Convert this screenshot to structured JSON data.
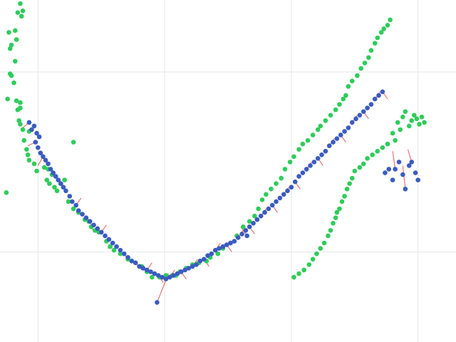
{
  "colors": {
    "background": "#ffffff",
    "grid": "#e6e6e6",
    "green_series": "#2ecc5a",
    "blue_series": "#3a5bc0",
    "link": "#e85a5a"
  },
  "chart_data": {
    "type": "scatter",
    "title": "",
    "xlabel": "",
    "ylabel": "",
    "grid": true,
    "legend": "none",
    "xlim": [
      -1.3,
      2.3
    ],
    "ylim": [
      -0.5,
      1.4
    ],
    "xgrid": [
      -1,
      0,
      1,
      2
    ],
    "ygrid": [
      0,
      1
    ],
    "series": [
      {
        "key": "green",
        "color": "#2ecc5a",
        "points": [
          [
            -1.14,
            1.38
          ],
          [
            -1.12,
            1.34
          ],
          [
            -1.13,
            1.31
          ],
          [
            -1.16,
            1.33
          ],
          [
            -1.18,
            1.23
          ],
          [
            -1.23,
            1.22
          ],
          [
            -1.21,
            1.15
          ],
          [
            -1.22,
            1.13
          ],
          [
            -1.17,
            1.18
          ],
          [
            -1.18,
            1.06
          ],
          [
            -1.22,
            0.99
          ],
          [
            -1.19,
            0.94
          ],
          [
            -1.21,
            0.98
          ],
          [
            -1.24,
            0.85
          ],
          [
            -1.17,
            0.84
          ],
          [
            -1.14,
            0.83
          ],
          [
            -1.16,
            0.79
          ],
          [
            -1.14,
            0.8
          ],
          [
            -1.15,
            0.73
          ],
          [
            -1.14,
            0.71
          ],
          [
            -1.12,
            0.68
          ],
          [
            -1.07,
            0.67
          ],
          [
            -1.11,
            0.62
          ],
          [
            -1.09,
            0.57
          ],
          [
            -1.08,
            0.54
          ],
          [
            -1.07,
            0.51
          ],
          [
            -1.03,
            0.49
          ],
          [
            -1.01,
            0.45
          ],
          [
            -0.95,
            0.47
          ],
          [
            -0.92,
            0.46
          ],
          [
            -0.89,
            0.43
          ],
          [
            -0.93,
            0.4
          ],
          [
            -0.91,
            0.38
          ],
          [
            -0.87,
            0.36
          ],
          [
            -0.85,
            0.34
          ],
          [
            -0.82,
            0.38
          ],
          [
            -0.79,
            0.4
          ],
          [
            -0.76,
            0.28
          ],
          [
            -0.72,
            0.24
          ],
          [
            -0.68,
            0.22
          ],
          [
            -0.63,
            0.18
          ],
          [
            -0.6,
            0.17
          ],
          [
            -0.58,
            0.14
          ],
          [
            -0.55,
            0.12
          ],
          [
            -0.52,
            0.11
          ],
          [
            -0.46,
            0.06
          ],
          [
            -0.43,
            0.03
          ],
          [
            -0.4,
            0.01
          ],
          [
            -0.35,
            -0.01
          ],
          [
            -0.29,
            -0.04
          ],
          [
            -0.26,
            -0.05
          ],
          [
            -0.18,
            -0.08
          ],
          [
            -0.14,
            -0.11
          ],
          [
            -0.1,
            -0.14
          ],
          [
            -0.04,
            -0.14
          ],
          [
            0.01,
            -0.13
          ],
          [
            0.06,
            -0.13
          ],
          [
            0.09,
            -0.13
          ],
          [
            0.12,
            -0.11
          ],
          [
            0.17,
            -0.09
          ],
          [
            0.22,
            -0.07
          ],
          [
            0.27,
            -0.06
          ],
          [
            0.33,
            -0.05
          ],
          [
            0.36,
            -0.03
          ],
          [
            0.42,
            -0.01
          ],
          [
            0.46,
            0.02
          ],
          [
            0.52,
            0.05
          ],
          [
            0.57,
            0.09
          ],
          [
            0.62,
            0.14
          ],
          [
            0.67,
            0.17
          ],
          [
            0.71,
            0.2
          ],
          [
            0.74,
            0.24
          ],
          [
            0.77,
            0.29
          ],
          [
            0.8,
            0.32
          ],
          [
            0.84,
            0.35
          ],
          [
            0.88,
            0.38
          ],
          [
            0.92,
            0.41
          ],
          [
            0.95,
            0.46
          ],
          [
            0.99,
            0.5
          ],
          [
            1.02,
            0.53
          ],
          [
            1.06,
            0.57
          ],
          [
            1.09,
            0.6
          ],
          [
            1.13,
            0.62
          ],
          [
            1.17,
            0.65
          ],
          [
            1.21,
            0.68
          ],
          [
            1.23,
            0.7
          ],
          [
            1.27,
            0.73
          ],
          [
            1.31,
            0.76
          ],
          [
            1.35,
            0.79
          ],
          [
            1.38,
            0.82
          ],
          [
            1.41,
            0.85
          ],
          [
            1.43,
            0.87
          ],
          [
            1.45,
            0.92
          ],
          [
            1.48,
            0.95
          ],
          [
            1.52,
            0.98
          ],
          [
            1.55,
            1.02
          ],
          [
            1.58,
            1.05
          ],
          [
            1.61,
            1.08
          ],
          [
            1.63,
            1.12
          ],
          [
            1.66,
            1.16
          ],
          [
            1.68,
            1.19
          ],
          [
            1.71,
            1.22
          ],
          [
            1.73,
            1.24
          ],
          [
            1.76,
            1.26
          ],
          [
            1.78,
            1.29
          ],
          [
            1.84,
            0.72
          ],
          [
            1.88,
            0.75
          ],
          [
            1.9,
            0.78
          ],
          [
            1.93,
            0.7
          ],
          [
            1.95,
            0.73
          ],
          [
            1.97,
            0.76
          ],
          [
            1.99,
            0.74
          ],
          [
            2.01,
            0.71
          ],
          [
            2.03,
            0.75
          ],
          [
            2.05,
            0.72
          ],
          [
            1.86,
            0.68
          ],
          [
            1.8,
            0.66
          ],
          [
            1.82,
            0.62
          ],
          [
            1.76,
            0.6
          ],
          [
            1.72,
            0.58
          ],
          [
            1.68,
            0.56
          ],
          [
            1.64,
            0.54
          ],
          [
            1.6,
            0.52
          ],
          [
            1.57,
            0.49
          ],
          [
            1.54,
            0.47
          ],
          [
            1.5,
            0.45
          ],
          [
            1.48,
            0.41
          ],
          [
            1.46,
            0.38
          ],
          [
            1.44,
            0.35
          ],
          [
            1.42,
            0.31
          ],
          [
            1.4,
            0.28
          ],
          [
            1.38,
            0.24
          ],
          [
            1.36,
            0.22
          ],
          [
            1.35,
            0.19
          ],
          [
            1.33,
            0.16
          ],
          [
            1.31,
            0.12
          ],
          [
            1.29,
            0.09
          ],
          [
            1.26,
            0.05
          ],
          [
            1.23,
            0.02
          ],
          [
            1.2,
            -0.01
          ],
          [
            1.17,
            -0.04
          ],
          [
            1.14,
            -0.07
          ],
          [
            1.1,
            -0.1
          ],
          [
            1.06,
            -0.12
          ],
          [
            1.02,
            -0.14
          ],
          [
            -1.25,
            0.33
          ],
          [
            -0.72,
            0.61
          ]
        ]
      },
      {
        "key": "blue",
        "color": "#3a5bc0",
        "points": [
          [
            -1.07,
            0.72
          ],
          [
            -1.05,
            0.68
          ],
          [
            -1.03,
            0.7
          ],
          [
            -1.01,
            0.66
          ],
          [
            -0.99,
            0.64
          ],
          [
            -1.02,
            0.61
          ],
          [
            -1.0,
            0.58
          ],
          [
            -0.98,
            0.55
          ],
          [
            -0.96,
            0.53
          ],
          [
            -0.94,
            0.51
          ],
          [
            -0.92,
            0.49
          ],
          [
            -0.9,
            0.46
          ],
          [
            -0.88,
            0.44
          ],
          [
            -0.86,
            0.42
          ],
          [
            -0.84,
            0.4
          ],
          [
            -0.82,
            0.38
          ],
          [
            -0.8,
            0.36
          ],
          [
            -0.78,
            0.34
          ],
          [
            -0.75,
            0.31
          ],
          [
            -0.73,
            0.28
          ],
          [
            -0.7,
            0.26
          ],
          [
            -0.68,
            0.23
          ],
          [
            -0.65,
            0.21
          ],
          [
            -0.62,
            0.19
          ],
          [
            -0.59,
            0.17
          ],
          [
            -0.56,
            0.15
          ],
          [
            -0.53,
            0.13
          ],
          [
            -0.5,
            0.11
          ],
          [
            -0.47,
            0.09
          ],
          [
            -0.44,
            0.07
          ],
          [
            -0.41,
            0.05
          ],
          [
            -0.38,
            0.03
          ],
          [
            -0.35,
            0.01
          ],
          [
            -0.32,
            -0.01
          ],
          [
            -0.29,
            -0.03
          ],
          [
            -0.26,
            -0.05
          ],
          [
            -0.23,
            -0.06
          ],
          [
            -0.2,
            -0.08
          ],
          [
            -0.17,
            -0.09
          ],
          [
            -0.14,
            -0.1
          ],
          [
            -0.11,
            -0.11
          ],
          [
            -0.08,
            -0.12
          ],
          [
            -0.05,
            -0.13
          ],
          [
            -0.02,
            -0.14
          ],
          [
            0.01,
            -0.15
          ],
          [
            0.04,
            -0.14
          ],
          [
            0.07,
            -0.13
          ],
          [
            0.1,
            -0.12
          ],
          [
            0.13,
            -0.11
          ],
          [
            0.16,
            -0.1
          ],
          [
            0.19,
            -0.09
          ],
          [
            0.22,
            -0.08
          ],
          [
            0.25,
            -0.07
          ],
          [
            0.28,
            -0.05
          ],
          [
            0.31,
            -0.04
          ],
          [
            0.34,
            -0.02
          ],
          [
            0.37,
            -0.01
          ],
          [
            0.4,
            0.01
          ],
          [
            0.43,
            0.02
          ],
          [
            0.46,
            0.03
          ],
          [
            0.49,
            0.04
          ],
          [
            0.52,
            0.05
          ],
          [
            0.55,
            0.06
          ],
          [
            0.58,
            0.08
          ],
          [
            0.61,
            0.1
          ],
          [
            0.64,
            0.12
          ],
          [
            0.67,
            0.14
          ],
          [
            0.7,
            0.16
          ],
          [
            0.73,
            0.18
          ],
          [
            0.76,
            0.2
          ],
          [
            0.79,
            0.22
          ],
          [
            0.82,
            0.24
          ],
          [
            0.85,
            0.26
          ],
          [
            0.88,
            0.28
          ],
          [
            0.91,
            0.3
          ],
          [
            0.94,
            0.32
          ],
          [
            0.97,
            0.34
          ],
          [
            1.0,
            0.36
          ],
          [
            1.03,
            0.39
          ],
          [
            1.06,
            0.42
          ],
          [
            1.09,
            0.44
          ],
          [
            1.12,
            0.46
          ],
          [
            1.15,
            0.48
          ],
          [
            1.18,
            0.5
          ],
          [
            1.21,
            0.52
          ],
          [
            1.24,
            0.54
          ],
          [
            1.27,
            0.56
          ],
          [
            1.3,
            0.59
          ],
          [
            1.33,
            0.61
          ],
          [
            1.36,
            0.63
          ],
          [
            1.39,
            0.65
          ],
          [
            1.42,
            0.67
          ],
          [
            1.45,
            0.69
          ],
          [
            1.48,
            0.72
          ],
          [
            1.51,
            0.74
          ],
          [
            1.54,
            0.76
          ],
          [
            1.57,
            0.78
          ],
          [
            1.6,
            0.8
          ],
          [
            1.63,
            0.82
          ],
          [
            1.66,
            0.85
          ],
          [
            1.69,
            0.87
          ],
          [
            1.72,
            0.89
          ],
          [
            -0.06,
            -0.28
          ],
          [
            0.65,
            0.09
          ],
          [
            1.82,
            0.46
          ],
          [
            1.9,
            0.35
          ],
          [
            1.95,
            0.5
          ],
          [
            1.98,
            0.44
          ],
          [
            2.0,
            0.4
          ],
          [
            1.93,
            0.48
          ],
          [
            1.88,
            0.43
          ],
          [
            1.85,
            0.5
          ],
          [
            1.8,
            0.4
          ],
          [
            1.77,
            0.46
          ],
          [
            1.74,
            0.44
          ]
        ]
      }
    ],
    "links": [
      [
        -1.07,
        0.72,
        -1.12,
        0.69
      ],
      [
        -1.02,
        0.61,
        -1.08,
        0.59
      ],
      [
        -0.96,
        0.53,
        -1.0,
        0.48
      ],
      [
        -0.84,
        0.4,
        -0.8,
        0.36
      ],
      [
        -0.7,
        0.26,
        -0.66,
        0.3
      ],
      [
        -0.59,
        0.17,
        -0.56,
        0.11
      ],
      [
        -0.5,
        0.11,
        -0.46,
        0.15
      ],
      [
        -0.41,
        0.05,
        -0.45,
        0.02
      ],
      [
        -0.32,
        -0.01,
        -0.28,
        -0.05
      ],
      [
        -0.23,
        -0.06,
        -0.18,
        -0.1
      ],
      [
        -0.14,
        -0.1,
        -0.1,
        -0.06
      ],
      [
        -0.05,
        -0.13,
        -0.01,
        -0.17
      ],
      [
        0.04,
        -0.14,
        0.08,
        -0.1
      ],
      [
        0.13,
        -0.11,
        0.17,
        -0.15
      ],
      [
        0.22,
        -0.08,
        0.26,
        -0.04
      ],
      [
        0.31,
        -0.04,
        0.35,
        -0.08
      ],
      [
        0.4,
        0.01,
        0.44,
        0.05
      ],
      [
        0.49,
        0.04,
        0.53,
        0.0
      ],
      [
        0.58,
        0.08,
        0.62,
        0.12
      ],
      [
        0.67,
        0.14,
        0.71,
        0.1
      ],
      [
        0.76,
        0.2,
        0.8,
        0.24
      ],
      [
        0.85,
        0.26,
        0.89,
        0.22
      ],
      [
        0.94,
        0.32,
        0.98,
        0.36
      ],
      [
        1.03,
        0.39,
        1.07,
        0.35
      ],
      [
        1.12,
        0.46,
        1.16,
        0.5
      ],
      [
        1.21,
        0.52,
        1.25,
        0.48
      ],
      [
        1.3,
        0.59,
        1.34,
        0.63
      ],
      [
        1.39,
        0.65,
        1.43,
        0.61
      ],
      [
        1.48,
        0.72,
        1.52,
        0.76
      ],
      [
        1.57,
        0.78,
        1.61,
        0.74
      ],
      [
        1.66,
        0.85,
        1.7,
        0.89
      ],
      [
        1.72,
        0.89,
        1.76,
        0.85
      ],
      [
        1.82,
        0.46,
        1.8,
        0.56
      ],
      [
        1.9,
        0.35,
        1.88,
        0.48
      ],
      [
        1.95,
        0.5,
        1.92,
        0.57
      ],
      [
        -0.06,
        -0.28,
        0.03,
        -0.12
      ],
      [
        0.65,
        0.09,
        0.6,
        0.14
      ]
    ]
  }
}
